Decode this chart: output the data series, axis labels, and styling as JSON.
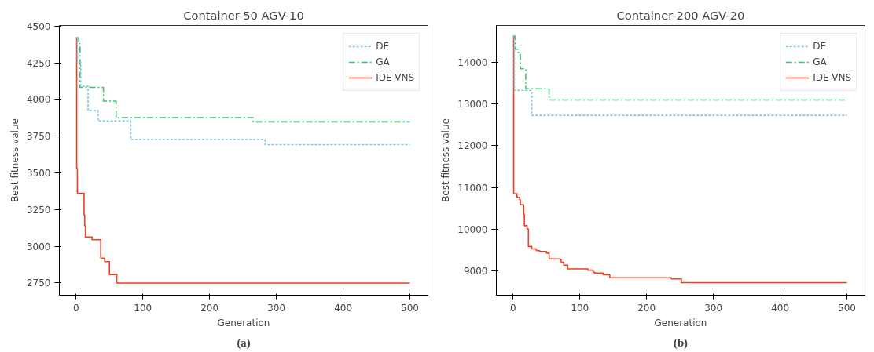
{
  "chart_data": [
    {
      "type": "step",
      "title": "Container-50 AGV-10",
      "xlabel": "Generation",
      "ylabel": "Best fitness value",
      "annotations": [
        "(a)"
      ],
      "xlim": [
        -25,
        527
      ],
      "xticks": [
        0,
        100,
        200,
        300,
        400,
        500
      ],
      "ylim": [
        2667,
        4504
      ],
      "yticks": [
        2750,
        3000,
        3250,
        3500,
        3750,
        4000,
        4250,
        4500
      ],
      "legend": "top right",
      "grid": false,
      "series": [
        {
          "name": "DE",
          "color": "#7ec8e3",
          "line_style": "dashed",
          "x": [
            0,
            2,
            7,
            18,
            33,
            82,
            283,
            500
          ],
          "values": [
            4420,
            4254,
            4090,
            3924,
            3853,
            3727,
            3692,
            3692
          ]
        },
        {
          "name": "GA",
          "color": "#3cc46e",
          "line_style": "dashdot",
          "x": [
            0,
            4,
            6,
            41,
            60,
            265,
            500
          ],
          "values": [
            4420,
            4380,
            4082,
            3989,
            3876,
            3848,
            3848
          ]
        },
        {
          "name": "IDE-VNS",
          "color": "#f0401e",
          "line_style": "solid",
          "x": [
            0,
            1,
            2,
            12,
            13,
            14,
            24,
            37,
            43,
            50,
            61,
            500
          ],
          "values": [
            4420,
            3528,
            3361,
            3212,
            3140,
            3063,
            3045,
            2919,
            2895,
            2808,
            2750,
            2750
          ]
        }
      ]
    },
    {
      "type": "step",
      "title": "Container-200 AGV-20",
      "xlabel": "Generation",
      "ylabel": "Best fitness value",
      "annotations": [
        "(b)"
      ],
      "xlim": [
        -25,
        527
      ],
      "xticks": [
        0,
        100,
        200,
        300,
        400,
        500
      ],
      "ylim": [
        8410,
        14890
      ],
      "yticks": [
        9000,
        10000,
        11000,
        12000,
        13000,
        14000
      ],
      "legend": "top right",
      "grid": false,
      "series": [
        {
          "name": "DE",
          "color": "#7ec8e3",
          "line_style": "dashed",
          "x": [
            0,
            2,
            28,
            500
          ],
          "values": [
            14640,
            13330,
            12730,
            12730
          ]
        },
        {
          "name": "GA",
          "color": "#3cc46e",
          "line_style": "dashdot",
          "x": [
            0,
            3,
            8,
            11,
            17,
            19,
            54,
            500
          ],
          "values": [
            14640,
            14320,
            14190,
            13850,
            13830,
            13370,
            13100,
            13100
          ]
        },
        {
          "name": "IDE-VNS",
          "color": "#f0401e",
          "line_style": "solid",
          "x": [
            0,
            1,
            6,
            10,
            11,
            16,
            17,
            21,
            23,
            28,
            35,
            40,
            50,
            54,
            70,
            72,
            76,
            82,
            105,
            112,
            120,
            122,
            135,
            145,
            237,
            252,
            500
          ],
          "values": [
            14640,
            10850,
            10760,
            10700,
            10580,
            10350,
            10080,
            10000,
            9580,
            9520,
            9480,
            9460,
            9420,
            9280,
            9270,
            9200,
            9130,
            9040,
            9040,
            9010,
            8960,
            8940,
            8900,
            8830,
            8800,
            8710,
            8710
          ]
        }
      ]
    }
  ]
}
